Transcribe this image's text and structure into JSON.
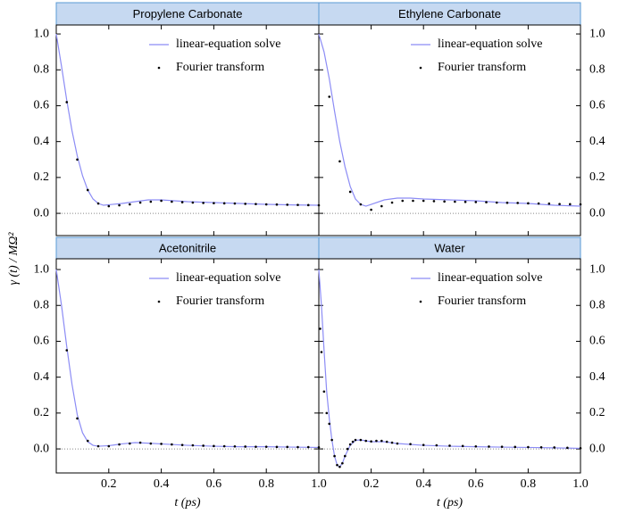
{
  "chart_data": [
    {
      "type": "line",
      "title": "Propylene Carbonate",
      "ylabel": "γ (t) / MΩ²",
      "xlim": [
        0,
        1
      ],
      "ylim": [
        -0.124,
        1.05
      ],
      "xticks": [
        0.2,
        0.4,
        0.6,
        0.8,
        {
          "value": 1,
          "label": "1.0"
        }
      ],
      "xtick_labels": false,
      "yticks": [
        {
          "value": 0,
          "label": "0.0"
        },
        0.2,
        0.4,
        0.6,
        0.8,
        {
          "value": 1,
          "label": "1.0"
        }
      ],
      "ytick_side": "left",
      "hline": 0,
      "legend": "upper right",
      "series": [
        {
          "name": "linear-equation solve",
          "color": "#8c8cf5",
          "style": "line",
          "x": [
            0,
            0.02,
            0.04,
            0.06,
            0.08,
            0.1,
            0.12,
            0.14,
            0.16,
            0.18,
            0.2,
            0.25,
            0.3,
            0.35,
            0.4,
            0.45,
            0.5,
            0.6,
            0.7,
            0.8,
            0.9,
            1.0
          ],
          "values": [
            1.0,
            0.82,
            0.63,
            0.46,
            0.32,
            0.21,
            0.13,
            0.08,
            0.055,
            0.045,
            0.048,
            0.055,
            0.065,
            0.075,
            0.075,
            0.07,
            0.065,
            0.06,
            0.055,
            0.05,
            0.047,
            0.045
          ]
        },
        {
          "name": "Fourier transform",
          "color": "#000000",
          "style": "scatter",
          "x": [
            0.04,
            0.08,
            0.12,
            0.16,
            0.2,
            0.24,
            0.28,
            0.32,
            0.36,
            0.4,
            0.44,
            0.48,
            0.52,
            0.56,
            0.6,
            0.64,
            0.68,
            0.72,
            0.76,
            0.8,
            0.84,
            0.88,
            0.92,
            0.96,
            1.0
          ],
          "values": [
            0.62,
            0.3,
            0.13,
            0.055,
            0.04,
            0.045,
            0.05,
            0.06,
            0.065,
            0.07,
            0.065,
            0.062,
            0.06,
            0.058,
            0.057,
            0.056,
            0.055,
            0.053,
            0.052,
            0.05,
            0.049,
            0.048,
            0.047,
            0.046,
            0.045
          ]
        }
      ]
    },
    {
      "type": "line",
      "title": "Ethylene Carbonate",
      "xlim": [
        0,
        1
      ],
      "ylim": [
        -0.124,
        1.05
      ],
      "xticks": [
        0.2,
        0.4,
        0.6,
        0.8,
        {
          "value": 1,
          "label": "1.0"
        }
      ],
      "xtick_labels": false,
      "yticks": [
        {
          "value": 0,
          "label": "0.0"
        },
        0.2,
        0.4,
        0.6,
        0.8,
        {
          "value": 1,
          "label": "1.0"
        }
      ],
      "ytick_side": "right",
      "hline": 0,
      "legend": "upper right",
      "series": [
        {
          "name": "linear-equation solve",
          "color": "#8c8cf5",
          "style": "line",
          "x": [
            0,
            0.02,
            0.04,
            0.06,
            0.08,
            0.1,
            0.12,
            0.14,
            0.16,
            0.18,
            0.2,
            0.25,
            0.3,
            0.35,
            0.4,
            0.5,
            0.6,
            0.7,
            0.8,
            0.9,
            1.0
          ],
          "values": [
            1.0,
            0.9,
            0.75,
            0.57,
            0.4,
            0.26,
            0.15,
            0.08,
            0.05,
            0.04,
            0.05,
            0.075,
            0.085,
            0.085,
            0.08,
            0.075,
            0.07,
            0.06,
            0.055,
            0.045,
            0.04
          ]
        },
        {
          "name": "Fourier transform",
          "color": "#000000",
          "style": "scatter",
          "x": [
            0.04,
            0.08,
            0.12,
            0.16,
            0.2,
            0.24,
            0.28,
            0.32,
            0.36,
            0.4,
            0.44,
            0.48,
            0.52,
            0.56,
            0.6,
            0.64,
            0.68,
            0.72,
            0.76,
            0.8,
            0.84,
            0.88,
            0.92,
            0.96,
            1.0
          ],
          "values": [
            0.65,
            0.29,
            0.12,
            0.05,
            0.02,
            0.04,
            0.06,
            0.07,
            0.07,
            0.07,
            0.068,
            0.066,
            0.065,
            0.064,
            0.063,
            0.062,
            0.06,
            0.059,
            0.058,
            0.056,
            0.055,
            0.054,
            0.052,
            0.051,
            0.05
          ]
        }
      ]
    },
    {
      "type": "line",
      "title": "Acetonitrile",
      "xlabel": "t  (ps)",
      "xlim": [
        0,
        1
      ],
      "ylim": [
        -0.134,
        1.06
      ],
      "xticks": [
        0.2,
        0.4,
        0.6,
        0.8,
        {
          "value": 1,
          "label": "1.0"
        }
      ],
      "xtick_labels": true,
      "yticks": [
        {
          "value": 0,
          "label": "0.0"
        },
        0.2,
        0.4,
        0.6,
        0.8,
        {
          "value": 1,
          "label": "1.0"
        }
      ],
      "ytick_side": "left",
      "hline": 0,
      "legend": "upper right",
      "series": [
        {
          "name": "linear-equation solve",
          "color": "#8c8cf5",
          "style": "line",
          "x": [
            0,
            0.02,
            0.04,
            0.06,
            0.08,
            0.1,
            0.12,
            0.14,
            0.16,
            0.2,
            0.25,
            0.3,
            0.35,
            0.4,
            0.5,
            0.6,
            0.7,
            0.8,
            0.9,
            1.0
          ],
          "values": [
            1.0,
            0.8,
            0.57,
            0.36,
            0.19,
            0.09,
            0.04,
            0.02,
            0.015,
            0.018,
            0.028,
            0.035,
            0.032,
            0.028,
            0.02,
            0.015,
            0.012,
            0.012,
            0.01,
            0.008
          ]
        },
        {
          "name": "Fourier transform",
          "color": "#000000",
          "style": "scatter",
          "x": [
            0.04,
            0.08,
            0.12,
            0.16,
            0.2,
            0.24,
            0.28,
            0.32,
            0.36,
            0.4,
            0.44,
            0.48,
            0.52,
            0.56,
            0.6,
            0.64,
            0.68,
            0.72,
            0.76,
            0.8,
            0.84,
            0.88,
            0.92,
            0.96,
            1.0
          ],
          "values": [
            0.55,
            0.17,
            0.045,
            0.015,
            0.015,
            0.025,
            0.03,
            0.035,
            0.03,
            0.028,
            0.025,
            0.022,
            0.02,
            0.018,
            0.016,
            0.015,
            0.014,
            0.013,
            0.012,
            0.012,
            0.011,
            0.011,
            0.01,
            0.01,
            0.009
          ]
        }
      ]
    },
    {
      "type": "line",
      "title": "Water",
      "xlabel": "t  (ps)",
      "xlim": [
        0,
        1
      ],
      "ylim": [
        -0.134,
        1.06
      ],
      "xticks": [
        0.2,
        0.4,
        0.6,
        0.8,
        {
          "value": 1,
          "label": "1.0"
        }
      ],
      "xtick_labels": true,
      "yticks": [
        {
          "value": 0,
          "label": "0.0"
        },
        0.2,
        0.4,
        0.6,
        0.8,
        {
          "value": 1,
          "label": "1.0"
        }
      ],
      "ytick_side": "right",
      "hline": 0,
      "legend": "upper right",
      "series": [
        {
          "name": "linear-equation solve",
          "color": "#8c8cf5",
          "style": "line",
          "x": [
            0,
            0.01,
            0.02,
            0.03,
            0.04,
            0.05,
            0.06,
            0.07,
            0.08,
            0.09,
            0.1,
            0.12,
            0.14,
            0.16,
            0.18,
            0.2,
            0.25,
            0.3,
            0.4,
            0.5,
            0.6,
            0.7,
            0.8,
            0.9,
            1.0
          ],
          "values": [
            1.0,
            0.8,
            0.55,
            0.32,
            0.17,
            0.05,
            -0.04,
            -0.09,
            -0.1,
            -0.08,
            -0.04,
            0.02,
            0.048,
            0.05,
            0.045,
            0.04,
            0.04,
            0.03,
            0.02,
            0.015,
            0.012,
            0.01,
            0.008,
            0.006,
            0.003
          ]
        },
        {
          "name": "Fourier transform",
          "color": "#000000",
          "style": "scatter",
          "x": [
            0.005,
            0.01,
            0.02,
            0.03,
            0.04,
            0.05,
            0.06,
            0.07,
            0.08,
            0.09,
            0.1,
            0.11,
            0.12,
            0.13,
            0.14,
            0.16,
            0.18,
            0.2,
            0.22,
            0.24,
            0.26,
            0.28,
            0.3,
            0.35,
            0.4,
            0.45,
            0.5,
            0.55,
            0.6,
            0.65,
            0.7,
            0.75,
            0.8,
            0.85,
            0.9,
            0.95,
            1.0
          ],
          "values": [
            0.67,
            0.54,
            0.32,
            0.2,
            0.14,
            0.05,
            -0.04,
            -0.09,
            -0.1,
            -0.08,
            -0.04,
            0.0,
            0.025,
            0.04,
            0.05,
            0.05,
            0.045,
            0.042,
            0.045,
            0.045,
            0.04,
            0.035,
            0.03,
            0.027,
            0.022,
            0.02,
            0.018,
            0.016,
            0.014,
            0.013,
            0.012,
            0.011,
            0.01,
            0.009,
            0.008,
            0.006,
            0.004
          ]
        }
      ]
    }
  ]
}
